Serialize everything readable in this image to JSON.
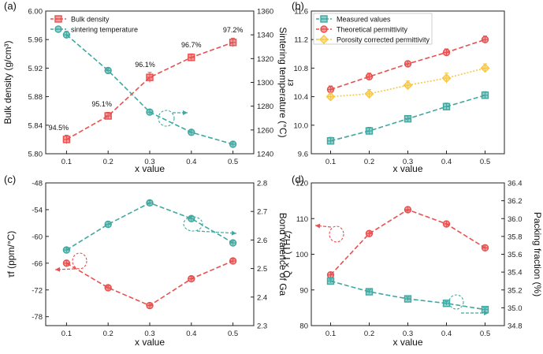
{
  "colors": {
    "red": "#e8504f",
    "teal": "#3ea8a1",
    "yellow": "#f7c845",
    "axis": "#222222"
  },
  "chart_data": [
    {
      "panel_label": "(a)",
      "type": "line",
      "xlabel": "x value",
      "x": [
        0.1,
        0.2,
        0.3,
        0.4,
        0.5
      ],
      "xlim": [
        0.05,
        0.55
      ],
      "xticks": [
        "0.1",
        "0.2",
        "0.3",
        "0.4",
        "0.5"
      ],
      "ylabel_left": "Bulk density (g/cm³)",
      "ylim_left": [
        5.8,
        6.0
      ],
      "yticks_left": [
        "5.80",
        "5.84",
        "5.88",
        "5.92",
        "5.96",
        "6.00"
      ],
      "ylabel_right": "Sintering temperature (°C)",
      "ylim_right": [
        1240,
        1360
      ],
      "yticks_right": [
        "1240",
        "1260",
        "1280",
        "1300",
        "1320",
        "1340",
        "1360"
      ],
      "legend_position": "top-left",
      "series": [
        {
          "name": "Bulk density",
          "axis": "left",
          "color": "#e8504f",
          "marker": "square",
          "values": [
            5.82,
            5.853,
            5.907,
            5.935,
            5.956
          ],
          "errors": [
            0.006,
            0.005,
            0.007,
            0.005,
            0.006
          ]
        },
        {
          "name": "sintering temperature",
          "axis": "right",
          "color": "#3ea8a1",
          "marker": "circle",
          "values": [
            1340,
            1310,
            1275,
            1258,
            1248
          ],
          "errors": [
            3,
            2,
            2,
            2,
            2
          ]
        }
      ],
      "data_labels": [
        "94.5%",
        "95.1%",
        "96.1%",
        "96.7%",
        "97.2%"
      ]
    },
    {
      "panel_label": "(b)",
      "type": "line",
      "xlabel": "x value",
      "x": [
        0.1,
        0.2,
        0.3,
        0.4,
        0.5
      ],
      "xlim": [
        0.05,
        0.55
      ],
      "xticks": [
        "0.1",
        "0.2",
        "0.3",
        "0.4",
        "0.5"
      ],
      "ylabel_left": "εr",
      "ylim_left": [
        9.6,
        11.6
      ],
      "yticks_left": [
        "9.6",
        "10.0",
        "10.4",
        "10.8",
        "11.2",
        "11.6"
      ],
      "legend_position": "top-left",
      "series": [
        {
          "name": "Measured values",
          "axis": "left",
          "color": "#3ea8a1",
          "marker": "square",
          "values": [
            9.78,
            9.92,
            10.09,
            10.26,
            10.42
          ],
          "errors": [
            0.05,
            0.05,
            0.04,
            0.05,
            0.05
          ]
        },
        {
          "name": "Theoretical permittivity",
          "axis": "left",
          "color": "#e8504f",
          "marker": "circle",
          "values": [
            10.5,
            10.68,
            10.86,
            11.02,
            11.2
          ],
          "errors": [
            0.05,
            0.05,
            0.04,
            0.05,
            0.05
          ]
        },
        {
          "name": "Porosity corrected permittivity",
          "axis": "left",
          "color": "#f7c845",
          "marker": "diamond",
          "values": [
            10.4,
            10.44,
            10.56,
            10.66,
            10.8
          ],
          "errors": [
            0.05,
            0.06,
            0.06,
            0.07,
            0.06
          ]
        }
      ]
    },
    {
      "panel_label": "(c)",
      "type": "line",
      "xlabel": "x value",
      "x": [
        0.1,
        0.2,
        0.3,
        0.4,
        0.5
      ],
      "xlim": [
        0.05,
        0.55
      ],
      "xticks": [
        "0.1",
        "0.2",
        "0.3",
        "0.4",
        "0.5"
      ],
      "ylabel_left": "τf (ppm/°C)",
      "ylim_left": [
        -80,
        -48
      ],
      "yticks_left": [
        "-78",
        "-72",
        "-66",
        "-60",
        "-54",
        "-48"
      ],
      "ylabel_right": "Bond valence of Ga",
      "ylim_right": [
        2.3,
        2.8
      ],
      "yticks_right": [
        "2.3",
        "2.4",
        "2.5",
        "2.6",
        "2.7",
        "2.8"
      ],
      "series": [
        {
          "axis": "left",
          "color": "#e8504f",
          "marker": "circle",
          "values": [
            -66.0,
            -71.5,
            -75.5,
            -69.5,
            -65.5
          ],
          "errors": [
            0.6,
            0.5,
            0.6,
            0.5,
            0.5
          ]
        },
        {
          "axis": "right",
          "color": "#3ea8a1",
          "marker": "circle",
          "values": [
            2.565,
            2.655,
            2.73,
            2.675,
            2.59
          ],
          "errors": [
            0.008,
            0.01,
            0.008,
            0.008,
            0.008
          ]
        }
      ]
    },
    {
      "panel_label": "(d)",
      "type": "line",
      "xlabel": "x value",
      "x": [
        0.1,
        0.2,
        0.3,
        0.4,
        0.5
      ],
      "xlim": [
        0.05,
        0.55
      ],
      "xticks": [
        "0.1",
        "0.2",
        "0.3",
        "0.4",
        "0.5"
      ],
      "ylabel_left": "Q × f (THz)",
      "ylim_left": [
        80,
        120
      ],
      "yticks_left": [
        "80",
        "90",
        "100",
        "110",
        "120"
      ],
      "ylabel_right": "Packing fraction (%)",
      "ylim_right": [
        34.8,
        36.4
      ],
      "yticks_right": [
        "34.8",
        "35.0",
        "35.2",
        "35.4",
        "35.6",
        "35.8",
        "36.0",
        "36.2",
        "36.4"
      ],
      "series": [
        {
          "axis": "left",
          "color": "#e8504f",
          "marker": "circle",
          "values": [
            94.2,
            105.8,
            112.5,
            108.5,
            101.8
          ],
          "errors": [
            0.8,
            0.8,
            0.8,
            0.8,
            0.8
          ]
        },
        {
          "axis": "right",
          "color": "#3ea8a1",
          "marker": "square",
          "values": [
            35.3,
            35.18,
            35.1,
            35.05,
            34.98
          ],
          "errors": [
            0.02,
            0.02,
            0.02,
            0.02,
            0.02
          ]
        }
      ]
    }
  ]
}
